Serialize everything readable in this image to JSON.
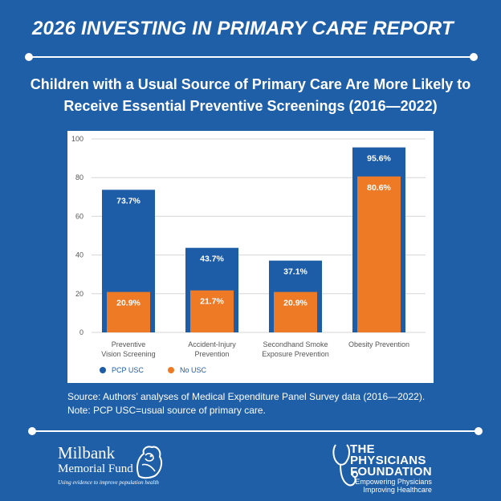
{
  "header": {
    "report_title": "2026 INVESTING IN PRIMARY CARE REPORT"
  },
  "chart_data": {
    "type": "bar",
    "title": "Children with a Usual Source of Primary Care Are More Likely to Receive Essential Preventive Screenings (2016—2022)",
    "categories": [
      [
        "Preventive",
        "Vision Screening"
      ],
      [
        "Accident-Injury",
        "Prevention"
      ],
      [
        "Secondhand Smoke",
        "Exposure Prevention"
      ],
      [
        "Obesity Prevention"
      ]
    ],
    "series": [
      {
        "name": "PCP USC",
        "color": "#1d5da8",
        "values": [
          73.7,
          43.7,
          37.1,
          95.6
        ],
        "labels": [
          "73.7%",
          "43.7%",
          "37.1%",
          "95.6%"
        ]
      },
      {
        "name": "No USC",
        "color": "#ee7a26",
        "values": [
          20.9,
          21.7,
          20.9,
          80.6
        ],
        "labels": [
          "20.9%",
          "21.7%",
          "20.9%",
          "80.6%"
        ]
      }
    ],
    "y_ticks": [
      0,
      20,
      40,
      60,
      80,
      100
    ],
    "ylim": [
      0,
      100
    ],
    "xlabel": "",
    "ylabel": "",
    "grid": true,
    "legend_position": "bottom-left"
  },
  "notes": {
    "source": "Source: Authors’ analyses of Medical Expenditure Panel Survey data (2016—2022).",
    "note": "Note: PCP USC=usual source of primary care."
  },
  "footer": {
    "milbank_name": "Milbank",
    "milbank_sub": "Memorial Fund",
    "milbank_tagline": "Using evidence to improve population health",
    "pf_line1": "THE",
    "pf_line2": "PHYSICIANS",
    "pf_line3": "FOUNDATION",
    "pf_tag1": "Empowering Physicians",
    "pf_tag2": "Improving Healthcare"
  },
  "colors": {
    "background": "#1f5fa8",
    "pcp_usc": "#1d5da8",
    "no_usc": "#ee7a26"
  }
}
